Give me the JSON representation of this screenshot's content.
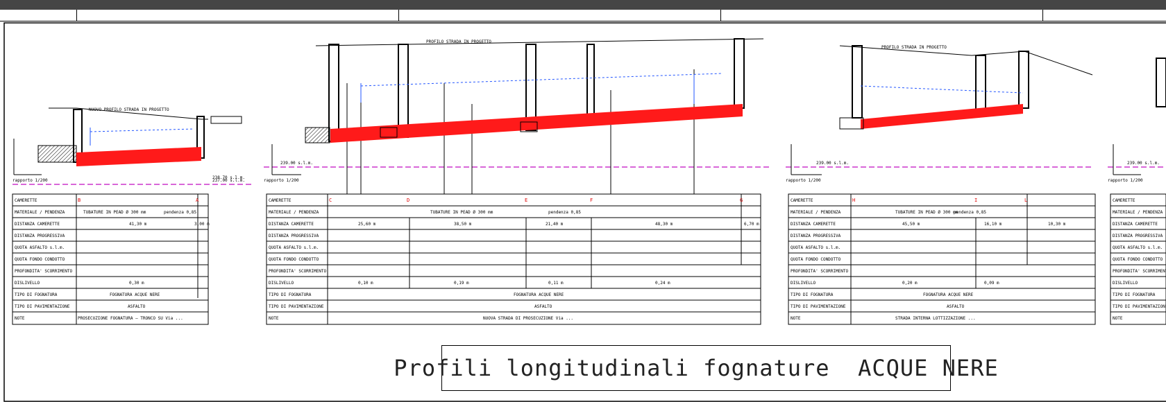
{
  "caption": "Profili longitudinali fognature  ACQUE NERE",
  "colors": {
    "sewer": "#ff1a1a",
    "water_line": "#2255ff",
    "datum": "#cc33cc"
  },
  "row_labels": [
    "CAMERETTE",
    "MATERIALE / PENDENZA",
    "DISTANZA CAMERETTE",
    "DISTANZA PROGRESSIVA",
    "QUOTA ASFALTO s.l.m.",
    "QUOTA FONDO CONDOTTO",
    "PROFONDITA' SCORRIMENTO",
    "DISLIVELLO",
    "TIPO DI FOGNATURA",
    "TIPO DI PAVIMENTAZIONE",
    "NOTE"
  ],
  "panels": [
    {
      "datum": "237.00 s.l.m.",
      "road": "NUOVO PROFILO STRADA IN PROGETTO",
      "manholes": [
        "B",
        "A"
      ],
      "material": "TUBATURE IN PEAD Ø 300 mm",
      "slope": "pendenza 0,85",
      "distance": "41,30 m",
      "distance2": "3,00 m",
      "drop": "0,30 m",
      "type": "FOGNATURA ACQUE NERE",
      "pavement": "ASFALTO",
      "note": "PROSECUZIONE FOGNATURA — TRONCO SU Via ...",
      "scale": "rapporto 1/200"
    },
    {
      "datum": "239.00 s.l.m.",
      "road": "PROFILO STRADA IN PROGETTO",
      "manholes": [
        "C",
        "D",
        "E",
        "F",
        "G"
      ],
      "material": "TUBATURE IN PEAD Ø 300 mm",
      "slope": "pendenza 0,85",
      "distances": [
        "25,60 m",
        "38,50 m",
        "21,40 m",
        "48,30 m",
        "6,70 m"
      ],
      "drops": [
        "0,10 m",
        "0,19 m",
        "0,11 m",
        "0,24 m"
      ],
      "type": "FOGNATURA ACQUE NERE",
      "pavement": "ASFALTO",
      "note": "NUOVA STRADA DI PROSECUZIONE Via ...",
      "scale": "rapporto 1/200"
    },
    {
      "datum": "239.00 s.l.m.",
      "road": "PROFILO STRADA IN PROGETTO",
      "manholes": [
        "H",
        "I",
        "L"
      ],
      "material": "TUBATURE IN PEAD Ø 300 mm",
      "slope": "pendenza 0,85",
      "distances": [
        "45,50 m",
        "16,10 m",
        "10,30 m"
      ],
      "drops": [
        "0,20 m",
        "0,09 m"
      ],
      "type": "FOGNATURA ACQUE NERE",
      "pavement": "ASFALTO",
      "note": "STRADA INTERNA LOTTIZZAZIONE ...",
      "scale": "rapporto 1/200"
    },
    {
      "datum": "239.00 s.l.m.",
      "scale": "rapporto 1/200"
    }
  ]
}
